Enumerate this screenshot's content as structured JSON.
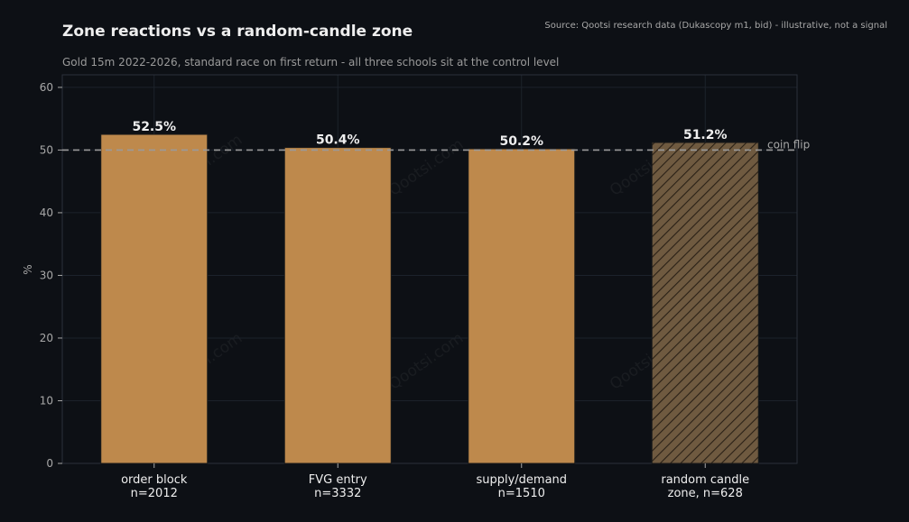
{
  "header": {
    "title": "Zone reactions vs a random-candle zone",
    "subtitle": "Gold 15m 2022-2026, standard race on first return - all three schools sit at the control level",
    "source": "Source: Qootsi research data (Dukascopy m1, bid) - illustrative, not a signal"
  },
  "watermark": "Qootsi.com",
  "colors": {
    "background": "#0d1015",
    "bar": "#be894c",
    "bar_control": "#6f5a40",
    "hatch": "#2a2016",
    "grid": "#1c222b",
    "reference_line": "#9a9a9a",
    "axis_text": "#a8a8a8",
    "label_text": "#eeeeee"
  },
  "chart_data": {
    "type": "bar",
    "title": "Zone reactions vs a random-candle zone",
    "subtitle": "Gold 15m 2022-2026, standard race on first return - all three schools sit at the control level",
    "categories": [
      [
        "order block",
        "n=2012"
      ],
      [
        "FVG entry",
        "n=3332"
      ],
      [
        "supply/demand",
        "n=1510"
      ],
      [
        "random candle",
        "zone, n=628"
      ]
    ],
    "values": [
      52.5,
      50.4,
      50.2,
      51.2
    ],
    "value_labels": [
      "52.5%",
      "50.4%",
      "50.2%",
      "51.2%"
    ],
    "hatched": [
      false,
      false,
      false,
      true
    ],
    "xlabel": "",
    "ylabel": "%",
    "ylim": [
      0,
      62
    ],
    "yticks": [
      0,
      10,
      20,
      30,
      40,
      50,
      60
    ],
    "grid": true,
    "reference_line": {
      "value": 50,
      "label": "coin flip",
      "style": "dashed"
    }
  }
}
